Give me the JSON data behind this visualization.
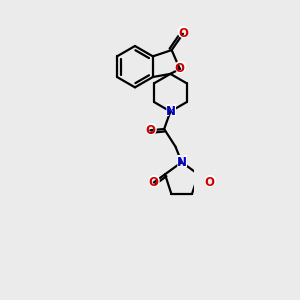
{
  "background_color": "#ebebeb",
  "bond_color": "#000000",
  "N_color": "#0000cc",
  "O_color": "#cc0000",
  "line_width": 1.6,
  "figsize": [
    3.0,
    3.0
  ],
  "dpi": 100,
  "canvas_xlim": [
    -0.1,
    1.3
  ],
  "canvas_ylim": [
    -1.5,
    3.2
  ]
}
